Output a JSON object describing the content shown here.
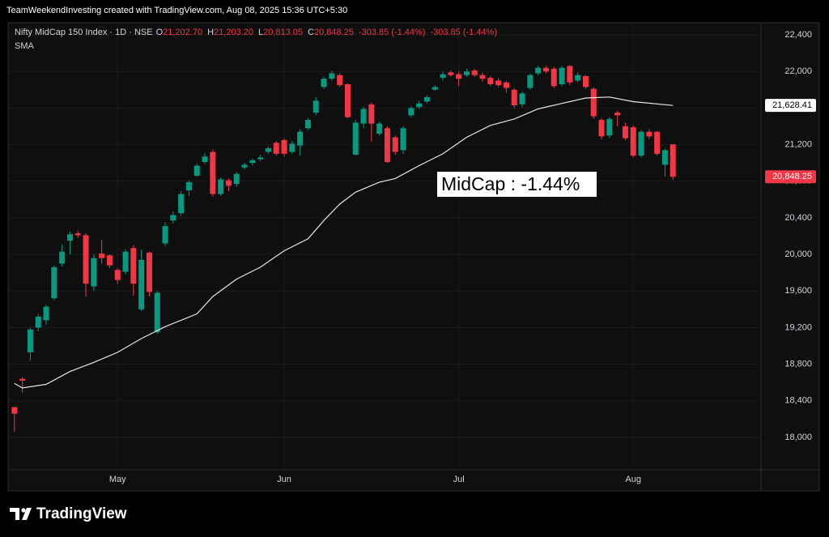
{
  "header": {
    "credit": "TeamWeekendInvesting created with TradingView.com, Aug 08, 2025 15:36 UTC+5:30"
  },
  "chart_data": {
    "type": "candlestick",
    "symbol": "Nifty MidCap 150 Index · 1D · NSE",
    "ohlc_legend": [
      {
        "key": "O",
        "value": "21,202.70"
      },
      {
        "key": "H",
        "value": "21,203.20"
      },
      {
        "key": "L",
        "value": "20,813.05"
      },
      {
        "key": "C",
        "value": "20,848.25"
      }
    ],
    "changes": [
      "-303.85 (-1.44%)",
      "-303.85 (-1.44%)"
    ],
    "up_color": "#089981",
    "down_color": "#f23645",
    "open": [
      18330,
      18640,
      18930,
      19200,
      19280,
      19520,
      19900,
      20150,
      20230,
      20210,
      19650,
      20010,
      19990,
      19830,
      19810,
      20070,
      19400,
      20020,
      19150,
      20120,
      20370,
      20450,
      20700,
      20860,
      21010,
      21120,
      20660,
      20810,
      20770,
      20950,
      21000,
      21040,
      21120,
      21220,
      21250,
      21120,
      21190,
      21380,
      21550,
      21830,
      21920,
      21960,
      21860,
      21090,
      21430,
      21640,
      21320,
      21380,
      21280,
      21140,
      21520,
      21610,
      21670,
      21800,
      21930,
      21990,
      21970,
      21960,
      22010,
      21960,
      21930,
      21900,
      21880,
      21800,
      21640,
      21820,
      21980,
      22040,
      22030,
      21860,
      22060,
      21900,
      21950,
      21810,
      21470,
      21300,
      21550,
      21400,
      21390,
      21080,
      21340,
      21340,
      20980,
      21202.7
    ],
    "high": [
      18340,
      18660,
      19200,
      19350,
      19450,
      19880,
      20110,
      20250,
      20260,
      20230,
      20000,
      20160,
      20000,
      19850,
      20060,
      20100,
      20050,
      20030,
      19600,
      20350,
      20470,
      20690,
      20810,
      20990,
      21110,
      21150,
      20840,
      20830,
      20900,
      21000,
      21050,
      21090,
      21180,
      21240,
      21270,
      21240,
      21370,
      21490,
      21720,
      21940,
      22010,
      21980,
      21870,
      21470,
      21610,
      21660,
      21450,
      21400,
      21300,
      21400,
      21620,
      21680,
      21740,
      21850,
      22000,
      22010,
      22000,
      22030,
      22030,
      21990,
      21950,
      21930,
      21900,
      21820,
      21780,
      21980,
      22060,
      22060,
      22050,
      22060,
      22070,
      21990,
      21960,
      21830,
      21490,
      21500,
      21570,
      21440,
      21410,
      21360,
      21370,
      21350,
      21160,
      21203.2
    ],
    "low": [
      18060,
      18490,
      18840,
      19160,
      19230,
      19500,
      19870,
      20000,
      20180,
      19540,
      19600,
      19900,
      19850,
      19680,
      19780,
      19550,
      19380,
      19540,
      19130,
      20090,
      20340,
      20420,
      20640,
      20850,
      20990,
      20630,
      20640,
      20690,
      20740,
      20930,
      20970,
      21020,
      21100,
      21080,
      21070,
      21100,
      21080,
      21360,
      21520,
      21810,
      21900,
      21830,
      21490,
      21080,
      21380,
      21230,
      21300,
      21000,
      21090,
      21100,
      21500,
      21590,
      21650,
      21790,
      21900,
      21940,
      21840,
      21940,
      21940,
      21890,
      21840,
      21830,
      21770,
      21600,
      21610,
      21800,
      21960,
      21980,
      21820,
      21840,
      21850,
      21880,
      21810,
      21480,
      21260,
      21270,
      21400,
      21250,
      21060,
      21060,
      21260,
      21080,
      20850,
      20813.05
    ],
    "close": [
      18260,
      18620,
      19180,
      19320,
      19430,
      19860,
      20030,
      20220,
      20210,
      19680,
      19960,
      19960,
      19880,
      19720,
      20030,
      19680,
      19940,
      19590,
      19580,
      20310,
      20430,
      20660,
      20790,
      20970,
      21070,
      20660,
      20820,
      20750,
      20880,
      20980,
      21030,
      21060,
      21160,
      21100,
      21100,
      21210,
      21340,
      21470,
      21680,
      21920,
      21980,
      21850,
      21500,
      21440,
      21590,
      21430,
      21430,
      21010,
      21120,
      21380,
      21600,
      21650,
      21720,
      21830,
      21970,
      21960,
      21920,
      22000,
      21960,
      21920,
      21860,
      21850,
      21820,
      21630,
      21760,
      21960,
      22040,
      22000,
      21840,
      22040,
      21880,
      21960,
      21830,
      21510,
      21290,
      21480,
      21520,
      21270,
      21080,
      21340,
      21290,
      21100,
      21140,
      20848.25
    ],
    "xlim": [
      -0.8,
      94.1
    ],
    "xticks": [
      {
        "value": 13,
        "label": "May"
      },
      {
        "value": 34,
        "label": "Jun"
      },
      {
        "value": 56,
        "label": "Jul"
      },
      {
        "value": 78,
        "label": "Aug"
      }
    ],
    "ylim": [
      17646,
      22533
    ],
    "yticks": [
      {
        "value": 18000,
        "label": "18,000"
      },
      {
        "value": 18400,
        "label": "18,400"
      },
      {
        "value": 18800,
        "label": "18,800"
      },
      {
        "value": 19200,
        "label": "19,200"
      },
      {
        "value": 19600,
        "label": "19,600"
      },
      {
        "value": 20000,
        "label": "20,000"
      },
      {
        "value": 20400,
        "label": "20,400"
      },
      {
        "value": 20800,
        "label": "20,800"
      },
      {
        "value": 21200,
        "label": "21,200"
      },
      {
        "value": 21600,
        "label": "21,600"
      },
      {
        "value": 22000,
        "label": "22,000"
      },
      {
        "value": 22400,
        "label": "22,400"
      }
    ],
    "grid": true,
    "sma": {
      "name": "SMA",
      "color": "#e6e6e6",
      "x": [
        0,
        1,
        4,
        7,
        10,
        13,
        16,
        19,
        23,
        25,
        28,
        31,
        34,
        37,
        39,
        41,
        43,
        46,
        48,
        51,
        54,
        57,
        60,
        63,
        66,
        69,
        72,
        75,
        78,
        83
      ],
      "values": [
        18590,
        18540,
        18580,
        18720,
        18820,
        18930,
        19080,
        19210,
        19350,
        19540,
        19730,
        19860,
        20040,
        20170,
        20370,
        20550,
        20680,
        20790,
        20830,
        20970,
        21100,
        21280,
        21410,
        21480,
        21590,
        21650,
        21710,
        21720,
        21670,
        21628.41
      ]
    },
    "price_labels": [
      {
        "value": 21628.41,
        "label": "21,628.41",
        "color": "#ffffff",
        "text_color": "#000000"
      },
      {
        "value": 20848.25,
        "label": "20,848.25",
        "color": "#f23645",
        "text_color": "#ffffff"
      }
    ],
    "annotation": "MidCap : -1.44%"
  },
  "footer": {
    "brand": "TradingView"
  }
}
